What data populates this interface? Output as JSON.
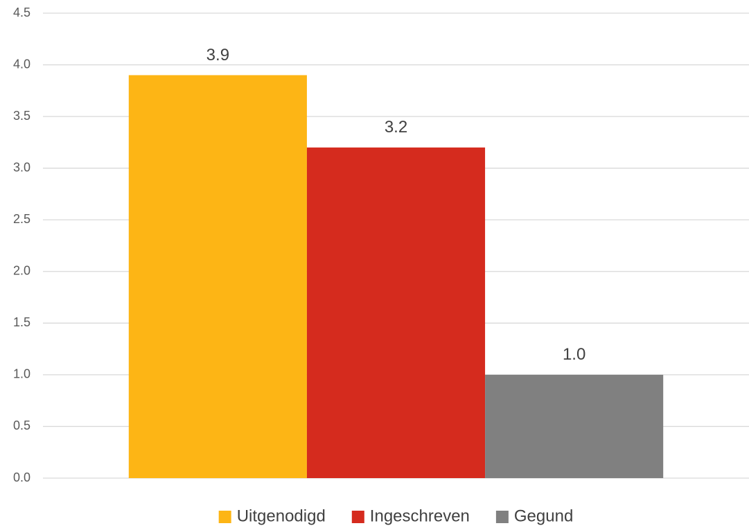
{
  "chart_data": {
    "type": "bar",
    "categories": [
      null
    ],
    "series": [
      {
        "name": "Uitgenodigd",
        "color": "#FDB515",
        "values": [
          3.9
        ]
      },
      {
        "name": "Ingeschreven",
        "color": "#D52B1E",
        "values": [
          3.2
        ]
      },
      {
        "name": "Gegund",
        "color": "#808080",
        "values": [
          1.0
        ],
        "value_labels": [
          "1.0"
        ]
      }
    ],
    "ylim": [
      0,
      4.5
    ],
    "yticks": [
      {
        "value": 0,
        "label": "0.0"
      },
      0.5,
      {
        "value": 1,
        "label": "1.0"
      },
      1.5,
      {
        "value": 2,
        "label": "2.0"
      },
      2.5,
      {
        "value": 3,
        "label": "3.0"
      },
      3.5,
      {
        "value": 4,
        "label": "4.0"
      },
      4.5
    ],
    "grid": true,
    "legend": "bottom"
  }
}
